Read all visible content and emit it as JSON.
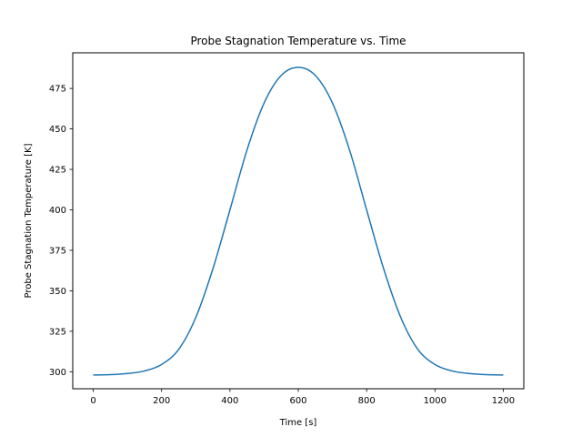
{
  "chart_data": {
    "type": "line",
    "title": "Probe Stagnation Temperature vs. Time",
    "xlabel": "Time [s]",
    "ylabel": "Probe Stagnation Temperature [K]",
    "xlim": [
      -60,
      1260
    ],
    "ylim": [
      289.5,
      497.0
    ],
    "xticks": [
      0,
      200,
      400,
      600,
      800,
      1000,
      1200
    ],
    "yticks": [
      300,
      325,
      350,
      375,
      400,
      425,
      450,
      475
    ],
    "grid": false,
    "series": [
      {
        "color": "#1f77b4",
        "x": [
          0,
          50,
          100,
          150,
          200,
          250,
          300,
          350,
          400,
          450,
          500,
          550,
          600,
          650,
          700,
          750,
          800,
          850,
          900,
          950,
          1000,
          1050,
          1100,
          1150,
          1200
        ],
        "y": [
          298.0,
          298.2,
          298.9,
          300.5,
          304.5,
          313.8,
          333.5,
          363.5,
          400.0,
          437.0,
          466.0,
          483.0,
          488.0,
          483.0,
          466.0,
          437.0,
          400.0,
          363.5,
          333.5,
          313.8,
          304.5,
          300.5,
          298.9,
          298.2,
          298.0
        ]
      }
    ]
  }
}
